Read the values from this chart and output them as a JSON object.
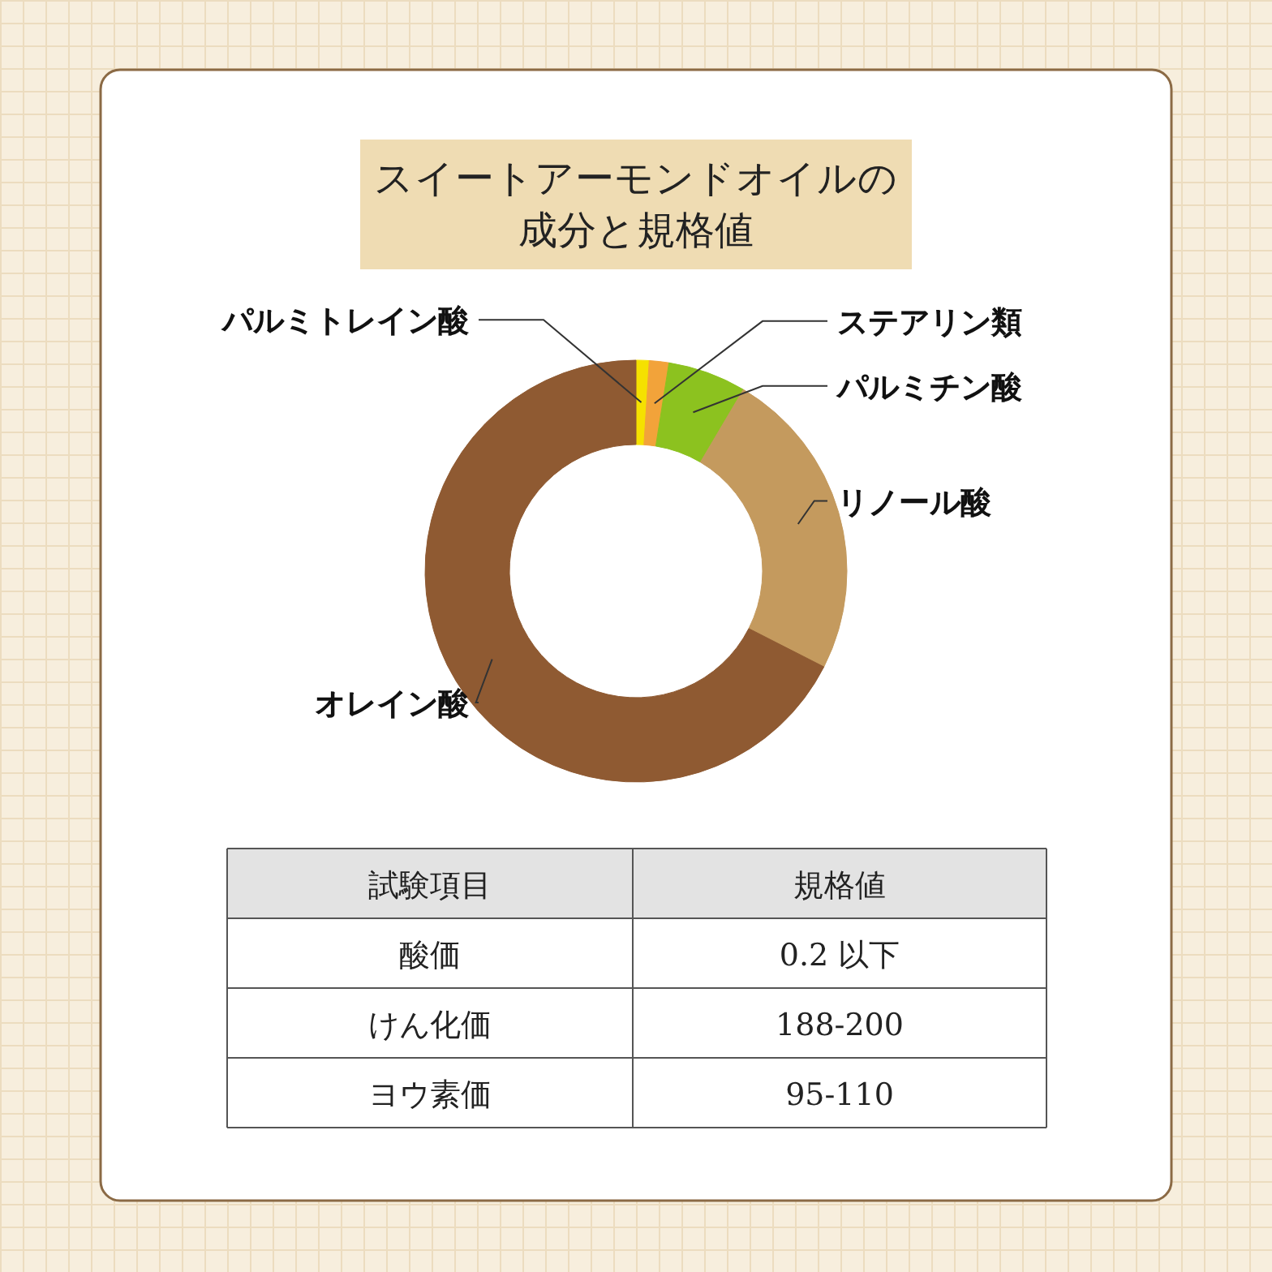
{
  "chart_data": [
    {
      "type": "donut",
      "title": "スイートアーモンドオイルの成分と規格値",
      "categories": [
        "パルミトレイン酸",
        "ステアリン類",
        "パルミチン酸",
        "リノール酸",
        "オレイン酸"
      ],
      "values": [
        1,
        1.5,
        6,
        24,
        67.5
      ],
      "colors": [
        "#f5e100",
        "#f2a33a",
        "#8cc21f",
        "#c49a5e",
        "#8f5a32"
      ],
      "legend": false
    },
    {
      "type": "other",
      "annotations": [
        "試験項目",
        "規格値",
        "酸価",
        "0.2 以下",
        "けん化価",
        "188-200",
        "ヨウ素価",
        "95-110"
      ]
    }
  ]
}
